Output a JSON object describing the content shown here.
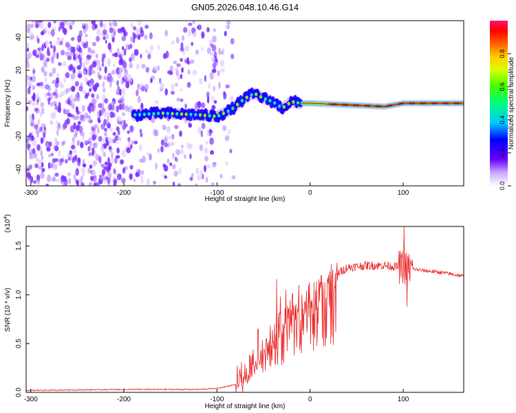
{
  "figure_title": "GN05.2026.048.10.46.G14",
  "chart_data": [
    {
      "type": "heatmap",
      "title": "GN05.2026.048.10.46.G14",
      "xlabel": "Height of straight line (km)",
      "ylabel": "Frequency (Hz)",
      "xlim": [
        -305,
        165
      ],
      "ylim": [
        -50,
        50
      ],
      "xticks": [
        -300,
        -200,
        -100,
        0,
        100
      ],
      "xtick_labels": [
        "-300",
        "-200",
        "-100",
        "0",
        "100"
      ],
      "yticks": [
        -40,
        -20,
        0,
        20,
        40
      ],
      "ytick_labels": [
        "-40",
        "-20",
        "0",
        "20",
        "40"
      ],
      "colorbar": {
        "label": "Normalized spectral amplitude",
        "range": [
          0,
          1
        ],
        "ticks": [
          0,
          0.2,
          0.4,
          0.6,
          0.8
        ],
        "tick_labels": [
          "0.0",
          "0.2",
          "0.4",
          "0.6",
          "0.8"
        ],
        "colors": [
          "#ffffff",
          "#b98cff",
          "#6a00ff",
          "#0000ff",
          "#00e5ff",
          "#00ff40",
          "#d8ff00",
          "#ffe000",
          "#ff7a00",
          "#ff0000",
          "#ff1070"
        ]
      },
      "ridge_points": [
        {
          "x": -185,
          "y": -7
        },
        {
          "x": -160,
          "y": -6
        },
        {
          "x": -120,
          "y": -7
        },
        {
          "x": -100,
          "y": -8
        },
        {
          "x": -85,
          "y": -4
        },
        {
          "x": -70,
          "y": 3
        },
        {
          "x": -60,
          "y": 6
        },
        {
          "x": -50,
          "y": 3
        },
        {
          "x": -40,
          "y": 1
        },
        {
          "x": -30,
          "y": -3
        },
        {
          "x": -20,
          "y": 1
        },
        {
          "x": -10,
          "y": 0
        },
        {
          "x": 0,
          "y": 0
        },
        {
          "x": 40,
          "y": -1
        },
        {
          "x": 80,
          "y": -2
        },
        {
          "x": 100,
          "y": 0
        },
        {
          "x": 165,
          "y": 0
        }
      ],
      "noise_region_x": [
        -305,
        -100
      ]
    },
    {
      "type": "line",
      "xlabel": "Height of straight line (km)",
      "ylabel": "SNR (10 * v/v)",
      "y_multiplier": "(x10",
      "y_multiplier_exp": "4",
      "y_multiplier_close": ")",
      "xlim": [
        -305,
        165
      ],
      "ylim": [
        0,
        1.7
      ],
      "xticks": [
        -300,
        -200,
        -100,
        0,
        100
      ],
      "xtick_labels": [
        "-300",
        "-200",
        "-100",
        "0",
        "100"
      ],
      "yticks": [
        0,
        0.5,
        1.0,
        1.5
      ],
      "ytick_labels": [
        "0.0",
        "0.5",
        "1.0",
        "1.5"
      ],
      "series": [
        {
          "name": "SNR",
          "color": "#e82020",
          "envelope": [
            {
              "x": -305,
              "y": 0.02
            },
            {
              "x": -200,
              "y": 0.03
            },
            {
              "x": -120,
              "y": 0.03
            },
            {
              "x": -100,
              "y": 0.04
            },
            {
              "x": -80,
              "y": 0.08
            },
            {
              "x": -70,
              "y": 0.18
            },
            {
              "x": -60,
              "y": 0.3
            },
            {
              "x": -50,
              "y": 0.45
            },
            {
              "x": -40,
              "y": 0.6
            },
            {
              "x": -30,
              "y": 0.7
            },
            {
              "x": -20,
              "y": 0.85
            },
            {
              "x": -10,
              "y": 0.9
            },
            {
              "x": 0,
              "y": 0.98
            },
            {
              "x": 10,
              "y": 1.05
            },
            {
              "x": 20,
              "y": 1.15
            },
            {
              "x": 30,
              "y": 1.22
            },
            {
              "x": 40,
              "y": 1.28
            },
            {
              "x": 60,
              "y": 1.3
            },
            {
              "x": 80,
              "y": 1.3
            },
            {
              "x": 100,
              "y": 1.28
            },
            {
              "x": 120,
              "y": 1.25
            },
            {
              "x": 140,
              "y": 1.23
            },
            {
              "x": 165,
              "y": 1.19
            }
          ],
          "spikes": [
            {
              "x": -65,
              "y": 0.38
            },
            {
              "x": -56,
              "y": 0.65
            },
            {
              "x": -47,
              "y": 0.55
            },
            {
              "x": -36,
              "y": 1.16
            },
            {
              "x": -32,
              "y": 0.98
            },
            {
              "x": -26,
              "y": 1.05
            },
            {
              "x": -19,
              "y": 1.01
            },
            {
              "x": -12,
              "y": 1.1
            },
            {
              "x": -4,
              "y": 1.04
            },
            {
              "x": 12,
              "y": 1.2
            },
            {
              "x": 101,
              "y": 1.74
            },
            {
              "x": 104,
              "y": 0.88
            }
          ]
        }
      ]
    }
  ]
}
